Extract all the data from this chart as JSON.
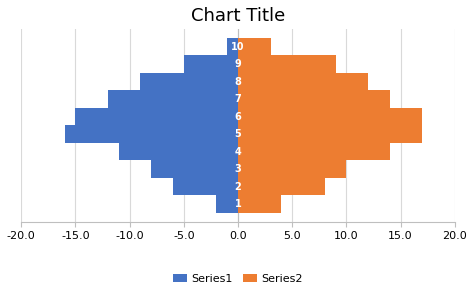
{
  "title": "Chart Title",
  "categories": [
    "1",
    "2",
    "3",
    "4",
    "5",
    "6",
    "7",
    "8",
    "9",
    "10"
  ],
  "series1_values": [
    -2,
    -6,
    -8,
    -11,
    -16,
    -15,
    -12,
    -9,
    -5,
    -1
  ],
  "series2_values": [
    4,
    8,
    10,
    14,
    17,
    17,
    14,
    12,
    9,
    3
  ],
  "series1_color": "#4472C4",
  "series2_color": "#ED7D31",
  "series1_label": "Series1",
  "series2_label": "Series2",
  "xlim": [
    -20,
    20
  ],
  "xticks": [
    -20.0,
    -15.0,
    -10.0,
    -5.0,
    0.0,
    5.0,
    10.0,
    15.0,
    20.0
  ],
  "background_color": "#ffffff",
  "title_fontsize": 13,
  "tick_label_fontsize": 8,
  "legend_fontsize": 8,
  "bar_height": 1.0,
  "label_fontsize": 7
}
